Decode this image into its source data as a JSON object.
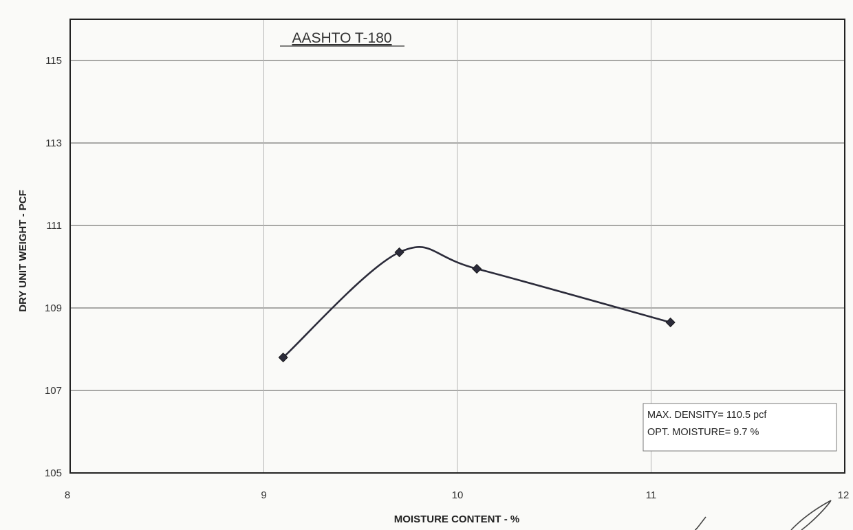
{
  "chart_data": {
    "type": "line",
    "title": "AASHTO T-180",
    "xlabel": "MOISTURE CONTENT - %",
    "ylabel": "DRY UNIT WEIGHT - PCF",
    "xlim": [
      8,
      12
    ],
    "ylim": [
      105,
      116
    ],
    "xticks": [
      8,
      9,
      10,
      11,
      12
    ],
    "yticks": [
      105,
      107,
      109,
      111,
      113,
      115
    ],
    "grid": true,
    "series": [
      {
        "x": [
          9.1,
          9.7,
          10.1,
          11.1
        ],
        "y": [
          107.8,
          110.35,
          109.95,
          108.65
        ]
      }
    ],
    "annotations": [
      "MAX. DENSITY= 110.5 pcf",
      "OPT. MOISTURE= 9.7 %"
    ]
  },
  "colors": {
    "line": "#2b2b3a",
    "grid": "#b5b5b5",
    "frame": "#222222"
  }
}
